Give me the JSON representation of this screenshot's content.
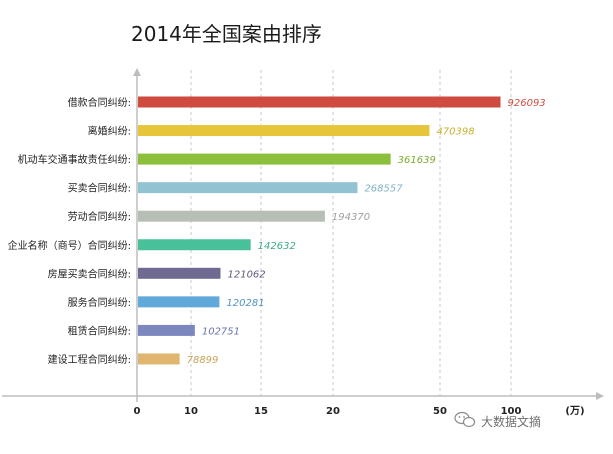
{
  "chart_data": {
    "type": "bar",
    "orientation": "horizontal",
    "title": "2014年全国案由排序",
    "categories": [
      "借款合同纠纷:",
      "离婚纠纷:",
      "机动车交通事故责任纠纷:",
      "买卖合同纠纷:",
      "劳动合同纠纷:",
      "企业名称（商号）合同纠纷:",
      "房屋买卖合同纠纷:",
      "服务合同纠纷:",
      "租赁合同纠纷:",
      "建设工程合同纠纷:"
    ],
    "values": [
      926093,
      470398,
      361639,
      268557,
      194370,
      142632,
      121062,
      120281,
      102751,
      78899
    ],
    "value_labels": [
      "926093",
      "470398",
      "361639",
      "268557",
      "194370",
      "142632",
      "121062",
      "120281",
      "102751",
      "78899"
    ],
    "colors": [
      "#cf4a3f",
      "#e6c53a",
      "#8bbf3c",
      "#92c3d3",
      "#b7beb6",
      "#48c09a",
      "#6e6a92",
      "#60a9d8",
      "#7c86bf",
      "#dfb56f"
    ],
    "label_colors": [
      "#cf4a3f",
      "#c9b02e",
      "#7aa831",
      "#7fb2c4",
      "#9aa29a",
      "#3ba985",
      "#5e5a82",
      "#4f94c2",
      "#6a74ab",
      "#c9a257"
    ],
    "x_ticks": [
      "0",
      "10",
      "15",
      "20",
      "50",
      "100"
    ],
    "x_tick_values": [
      0,
      100000,
      150000,
      200000,
      500000,
      1000000
    ],
    "x_unit": "(万)",
    "xlabel": "",
    "ylabel": "",
    "x_scale": "piecewise (non-uniform tick spacing)",
    "grid": "vertical dashed lines at ticks"
  },
  "watermark": {
    "text": "大数据文摘"
  }
}
